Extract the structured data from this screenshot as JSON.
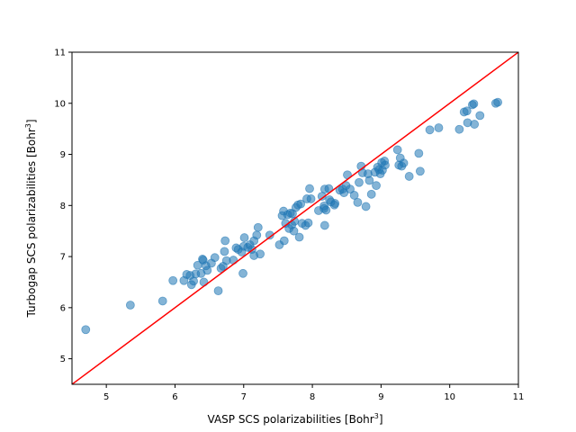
{
  "chart_data": {
    "type": "scatter",
    "title": "",
    "xlabel": "VASP SCS polarizabilities [Bohr",
    "xlabel_sup": "3",
    "xlabel_end": "]",
    "ylabel": "Turbogap SCS polarizabilities [Bohr",
    "ylabel_sup": "3",
    "ylabel_end": "]",
    "xlim": [
      4.5,
      11
    ],
    "ylim": [
      4.5,
      11
    ],
    "xticks": [
      5,
      6,
      7,
      8,
      9,
      10,
      11
    ],
    "yticks": [
      5,
      6,
      7,
      8,
      9,
      10,
      11
    ],
    "grid": false,
    "marker_color": "#1f77b4",
    "line_color": "#ff0000",
    "reference_line": {
      "x": [
        4.5,
        11
      ],
      "y": [
        4.5,
        11
      ]
    },
    "points": [
      [
        4.7,
        5.57
      ],
      [
        5.35,
        6.05
      ],
      [
        5.82,
        6.13
      ],
      [
        5.97,
        6.53
      ],
      [
        6.13,
        6.53
      ],
      [
        6.17,
        6.65
      ],
      [
        6.22,
        6.63
      ],
      [
        6.24,
        6.45
      ],
      [
        6.27,
        6.52
      ],
      [
        6.3,
        6.66
      ],
      [
        6.33,
        6.83
      ],
      [
        6.38,
        6.67
      ],
      [
        6.4,
        6.95
      ],
      [
        6.41,
        6.93
      ],
      [
        6.42,
        6.5
      ],
      [
        6.45,
        6.82
      ],
      [
        6.47,
        6.73
      ],
      [
        6.53,
        6.87
      ],
      [
        6.58,
        6.98
      ],
      [
        6.63,
        6.33
      ],
      [
        6.67,
        6.77
      ],
      [
        6.7,
        6.81
      ],
      [
        6.72,
        7.1
      ],
      [
        6.73,
        7.31
      ],
      [
        6.75,
        6.92
      ],
      [
        6.85,
        6.93
      ],
      [
        6.89,
        7.17
      ],
      [
        6.92,
        7.14
      ],
      [
        6.97,
        7.09
      ],
      [
        6.99,
        6.67
      ],
      [
        7.0,
        7.2
      ],
      [
        7.01,
        7.37
      ],
      [
        7.06,
        7.18
      ],
      [
        7.09,
        7.23
      ],
      [
        7.12,
        7.14
      ],
      [
        7.15,
        7.31
      ],
      [
        7.15,
        7.02
      ],
      [
        7.19,
        7.42
      ],
      [
        7.21,
        7.57
      ],
      [
        7.24,
        7.05
      ],
      [
        7.38,
        7.42
      ],
      [
        7.52,
        7.23
      ],
      [
        7.56,
        7.8
      ],
      [
        7.58,
        7.89
      ],
      [
        7.59,
        7.31
      ],
      [
        7.61,
        7.65
      ],
      [
        7.64,
        7.82
      ],
      [
        7.66,
        7.55
      ],
      [
        7.68,
        7.85
      ],
      [
        7.7,
        7.62
      ],
      [
        7.71,
        7.84
      ],
      [
        7.73,
        7.5
      ],
      [
        7.74,
        7.69
      ],
      [
        7.76,
        7.96
      ],
      [
        7.79,
        8.01
      ],
      [
        7.81,
        7.38
      ],
      [
        7.83,
        8.03
      ],
      [
        7.85,
        7.65
      ],
      [
        7.9,
        7.61
      ],
      [
        7.92,
        8.13
      ],
      [
        7.94,
        7.66
      ],
      [
        7.96,
        8.33
      ],
      [
        7.98,
        8.13
      ],
      [
        8.09,
        7.9
      ],
      [
        8.14,
        8.18
      ],
      [
        8.17,
        7.99
      ],
      [
        8.17,
        7.94
      ],
      [
        8.18,
        7.61
      ],
      [
        8.18,
        8.32
      ],
      [
        8.2,
        7.91
      ],
      [
        8.24,
        8.33
      ],
      [
        8.25,
        8.11
      ],
      [
        8.27,
        8.07
      ],
      [
        8.32,
        8.01
      ],
      [
        8.33,
        8.04
      ],
      [
        8.4,
        8.3
      ],
      [
        8.44,
        8.32
      ],
      [
        8.46,
        8.25
      ],
      [
        8.49,
        8.39
      ],
      [
        8.51,
        8.6
      ],
      [
        8.55,
        8.32
      ],
      [
        8.61,
        8.2
      ],
      [
        8.66,
        8.06
      ],
      [
        8.68,
        8.45
      ],
      [
        8.71,
        8.77
      ],
      [
        8.73,
        8.64
      ],
      [
        8.78,
        7.98
      ],
      [
        8.81,
        8.62
      ],
      [
        8.83,
        8.49
      ],
      [
        8.86,
        8.22
      ],
      [
        8.91,
        8.65
      ],
      [
        8.93,
        8.39
      ],
      [
        8.95,
        8.75
      ],
      [
        8.97,
        8.7
      ],
      [
        8.99,
        8.62
      ],
      [
        9.01,
        8.84
      ],
      [
        9.02,
        8.69
      ],
      [
        9.05,
        8.87
      ],
      [
        9.06,
        8.79
      ],
      [
        9.24,
        9.09
      ],
      [
        9.26,
        8.79
      ],
      [
        9.28,
        8.93
      ],
      [
        9.3,
        8.77
      ],
      [
        9.33,
        8.83
      ],
      [
        9.41,
        8.57
      ],
      [
        9.55,
        9.02
      ],
      [
        9.57,
        8.67
      ],
      [
        9.71,
        9.48
      ],
      [
        9.84,
        9.52
      ],
      [
        10.14,
        9.49
      ],
      [
        10.21,
        9.83
      ],
      [
        10.25,
        9.85
      ],
      [
        10.26,
        9.62
      ],
      [
        10.33,
        9.97
      ],
      [
        10.35,
        9.99
      ],
      [
        10.36,
        9.59
      ],
      [
        10.44,
        9.76
      ],
      [
        10.67,
        10.0
      ],
      [
        10.7,
        10.02
      ]
    ]
  }
}
